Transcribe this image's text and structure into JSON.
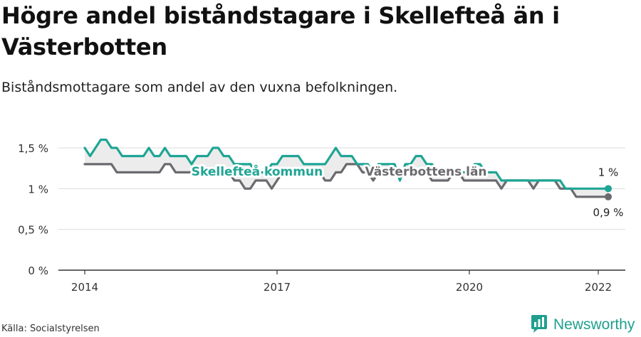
{
  "title": "Högre andel biståndstagare i Skellefteå än i Västerbotten",
  "subtitle": "Biståndsmottagare som andel av den vuxna befolkningen.",
  "source": "Källa: Socialstyrelsen",
  "brand": {
    "name": "Newsworthy",
    "icon": "newsworthy-logo-icon"
  },
  "colors": {
    "kommun": "#1fa595",
    "lan": "#6a6a6f",
    "axis": "#333333",
    "grid": "#dddddd",
    "fill": "#ececec"
  },
  "chart_data": {
    "type": "line",
    "title": "Högre andel biståndstagare i Skellefteå än i Västerbotten",
    "subtitle": "Biståndsmottagare som andel av den vuxna befolkningen.",
    "xlabel": "",
    "ylabel": "",
    "x_ticks": [
      "2014",
      "2017",
      "2020",
      "2022"
    ],
    "y_ticks": [
      "0 %",
      "0,5 %",
      "1 %",
      "1,5 %"
    ],
    "ylim": [
      0,
      1.5
    ],
    "grid": true,
    "series": [
      {
        "name": "Skellefteå kommun",
        "color": "#1fa595",
        "end_label": "1 %",
        "points": [
          [
            "2014-01",
            1.5
          ],
          [
            "2014-02",
            1.4
          ],
          [
            "2014-03",
            1.5
          ],
          [
            "2014-04",
            1.6
          ],
          [
            "2014-05",
            1.6
          ],
          [
            "2014-06",
            1.5
          ],
          [
            "2014-07",
            1.5
          ],
          [
            "2014-08",
            1.4
          ],
          [
            "2014-09",
            1.4
          ],
          [
            "2014-10",
            1.4
          ],
          [
            "2014-11",
            1.4
          ],
          [
            "2014-12",
            1.4
          ],
          [
            "2015-01",
            1.5
          ],
          [
            "2015-02",
            1.4
          ],
          [
            "2015-03",
            1.4
          ],
          [
            "2015-04",
            1.5
          ],
          [
            "2015-05",
            1.4
          ],
          [
            "2015-06",
            1.4
          ],
          [
            "2015-07",
            1.4
          ],
          [
            "2015-08",
            1.4
          ],
          [
            "2015-09",
            1.3
          ],
          [
            "2015-10",
            1.4
          ],
          [
            "2015-11",
            1.4
          ],
          [
            "2015-12",
            1.4
          ],
          [
            "2016-01",
            1.5
          ],
          [
            "2016-02",
            1.5
          ],
          [
            "2016-03",
            1.4
          ],
          [
            "2016-04",
            1.4
          ],
          [
            "2016-05",
            1.3
          ],
          [
            "2016-06",
            1.3
          ],
          [
            "2016-07",
            1.3
          ],
          [
            "2016-08",
            1.3
          ],
          [
            "2016-09",
            1.2
          ],
          [
            "2016-10",
            1.2
          ],
          [
            "2016-11",
            1.2
          ],
          [
            "2016-12",
            1.3
          ],
          [
            "2017-01",
            1.3
          ],
          [
            "2017-02",
            1.4
          ],
          [
            "2017-03",
            1.4
          ],
          [
            "2017-04",
            1.4
          ],
          [
            "2017-05",
            1.4
          ],
          [
            "2017-06",
            1.3
          ],
          [
            "2017-07",
            1.3
          ],
          [
            "2017-08",
            1.3
          ],
          [
            "2017-09",
            1.3
          ],
          [
            "2017-10",
            1.3
          ],
          [
            "2017-11",
            1.4
          ],
          [
            "2017-12",
            1.5
          ],
          [
            "2018-01",
            1.4
          ],
          [
            "2018-02",
            1.4
          ],
          [
            "2018-03",
            1.4
          ],
          [
            "2018-04",
            1.3
          ],
          [
            "2018-05",
            1.3
          ],
          [
            "2018-06",
            1.3
          ],
          [
            "2018-07",
            1.2
          ],
          [
            "2018-08",
            1.3
          ],
          [
            "2018-09",
            1.3
          ],
          [
            "2018-10",
            1.3
          ],
          [
            "2018-11",
            1.3
          ],
          [
            "2018-12",
            1.1
          ],
          [
            "2019-01",
            1.3
          ],
          [
            "2019-02",
            1.3
          ],
          [
            "2019-03",
            1.4
          ],
          [
            "2019-04",
            1.4
          ],
          [
            "2019-05",
            1.3
          ],
          [
            "2019-06",
            1.3
          ],
          [
            "2019-07",
            1.2
          ],
          [
            "2019-08",
            1.2
          ],
          [
            "2019-09",
            1.2
          ],
          [
            "2019-10",
            1.2
          ],
          [
            "2019-11",
            1.2
          ],
          [
            "2019-12",
            1.2
          ],
          [
            "2020-01",
            1.2
          ],
          [
            "2020-02",
            1.3
          ],
          [
            "2020-03",
            1.3
          ],
          [
            "2020-04",
            1.2
          ],
          [
            "2020-05",
            1.2
          ],
          [
            "2020-06",
            1.2
          ],
          [
            "2020-07",
            1.1
          ],
          [
            "2020-08",
            1.1
          ],
          [
            "2020-09",
            1.1
          ],
          [
            "2020-10",
            1.1
          ],
          [
            "2020-11",
            1.1
          ],
          [
            "2020-12",
            1.1
          ],
          [
            "2021-01",
            1.1
          ],
          [
            "2021-02",
            1.1
          ],
          [
            "2021-03",
            1.1
          ],
          [
            "2021-04",
            1.1
          ],
          [
            "2021-05",
            1.1
          ],
          [
            "2021-06",
            1.1
          ],
          [
            "2021-07",
            1.0
          ],
          [
            "2021-08",
            1.0
          ],
          [
            "2021-09",
            1.0
          ],
          [
            "2021-10",
            1.0
          ],
          [
            "2021-11",
            1.0
          ],
          [
            "2021-12",
            1.0
          ],
          [
            "2022-01",
            1.0
          ],
          [
            "2022-02",
            1.0
          ],
          [
            "2022-03",
            1.0
          ]
        ]
      },
      {
        "name": "Västerbottens län",
        "color": "#6a6a6f",
        "end_label": "0,9 %",
        "points": [
          [
            "2014-01",
            1.3
          ],
          [
            "2014-02",
            1.3
          ],
          [
            "2014-03",
            1.3
          ],
          [
            "2014-04",
            1.3
          ],
          [
            "2014-05",
            1.3
          ],
          [
            "2014-06",
            1.3
          ],
          [
            "2014-07",
            1.2
          ],
          [
            "2014-08",
            1.2
          ],
          [
            "2014-09",
            1.2
          ],
          [
            "2014-10",
            1.2
          ],
          [
            "2014-11",
            1.2
          ],
          [
            "2014-12",
            1.2
          ],
          [
            "2015-01",
            1.2
          ],
          [
            "2015-02",
            1.2
          ],
          [
            "2015-03",
            1.2
          ],
          [
            "2015-04",
            1.3
          ],
          [
            "2015-05",
            1.3
          ],
          [
            "2015-06",
            1.2
          ],
          [
            "2015-07",
            1.2
          ],
          [
            "2015-08",
            1.2
          ],
          [
            "2015-09",
            1.2
          ],
          [
            "2015-10",
            1.2
          ],
          [
            "2015-11",
            1.2
          ],
          [
            "2015-12",
            1.2
          ],
          [
            "2016-01",
            1.2
          ],
          [
            "2016-02",
            1.2
          ],
          [
            "2016-03",
            1.2
          ],
          [
            "2016-04",
            1.2
          ],
          [
            "2016-05",
            1.1
          ],
          [
            "2016-06",
            1.1
          ],
          [
            "2016-07",
            1.0
          ],
          [
            "2016-08",
            1.0
          ],
          [
            "2016-09",
            1.1
          ],
          [
            "2016-10",
            1.1
          ],
          [
            "2016-11",
            1.1
          ],
          [
            "2016-12",
            1.0
          ],
          [
            "2017-01",
            1.1
          ],
          [
            "2017-02",
            1.2
          ],
          [
            "2017-03",
            1.2
          ],
          [
            "2017-04",
            1.2
          ],
          [
            "2017-05",
            1.2
          ],
          [
            "2017-06",
            1.2
          ],
          [
            "2017-07",
            1.2
          ],
          [
            "2017-08",
            1.2
          ],
          [
            "2017-09",
            1.2
          ],
          [
            "2017-10",
            1.1
          ],
          [
            "2017-11",
            1.1
          ],
          [
            "2017-12",
            1.2
          ],
          [
            "2018-01",
            1.2
          ],
          [
            "2018-02",
            1.3
          ],
          [
            "2018-03",
            1.3
          ],
          [
            "2018-04",
            1.3
          ],
          [
            "2018-05",
            1.2
          ],
          [
            "2018-06",
            1.2
          ],
          [
            "2018-07",
            1.1
          ],
          [
            "2018-08",
            1.2
          ],
          [
            "2018-09",
            1.2
          ],
          [
            "2018-10",
            1.2
          ],
          [
            "2018-11",
            1.2
          ],
          [
            "2018-12",
            1.2
          ],
          [
            "2019-01",
            1.2
          ],
          [
            "2019-02",
            1.2
          ],
          [
            "2019-03",
            1.2
          ],
          [
            "2019-04",
            1.2
          ],
          [
            "2019-05",
            1.2
          ],
          [
            "2019-06",
            1.1
          ],
          [
            "2019-07",
            1.1
          ],
          [
            "2019-08",
            1.1
          ],
          [
            "2019-09",
            1.1
          ],
          [
            "2019-10",
            1.2
          ],
          [
            "2019-11",
            1.2
          ],
          [
            "2019-12",
            1.1
          ],
          [
            "2020-01",
            1.1
          ],
          [
            "2020-02",
            1.1
          ],
          [
            "2020-03",
            1.1
          ],
          [
            "2020-04",
            1.1
          ],
          [
            "2020-05",
            1.1
          ],
          [
            "2020-06",
            1.1
          ],
          [
            "2020-07",
            1.0
          ],
          [
            "2020-08",
            1.1
          ],
          [
            "2020-09",
            1.1
          ],
          [
            "2020-10",
            1.1
          ],
          [
            "2020-11",
            1.1
          ],
          [
            "2020-12",
            1.1
          ],
          [
            "2021-01",
            1.0
          ],
          [
            "2021-02",
            1.1
          ],
          [
            "2021-03",
            1.1
          ],
          [
            "2021-04",
            1.1
          ],
          [
            "2021-05",
            1.1
          ],
          [
            "2021-06",
            1.0
          ],
          [
            "2021-07",
            1.0
          ],
          [
            "2021-08",
            1.0
          ],
          [
            "2021-09",
            0.9
          ],
          [
            "2021-10",
            0.9
          ],
          [
            "2021-11",
            0.9
          ],
          [
            "2021-12",
            0.9
          ],
          [
            "2022-01",
            0.9
          ],
          [
            "2022-02",
            0.9
          ],
          [
            "2022-03",
            0.9
          ]
        ]
      }
    ]
  }
}
